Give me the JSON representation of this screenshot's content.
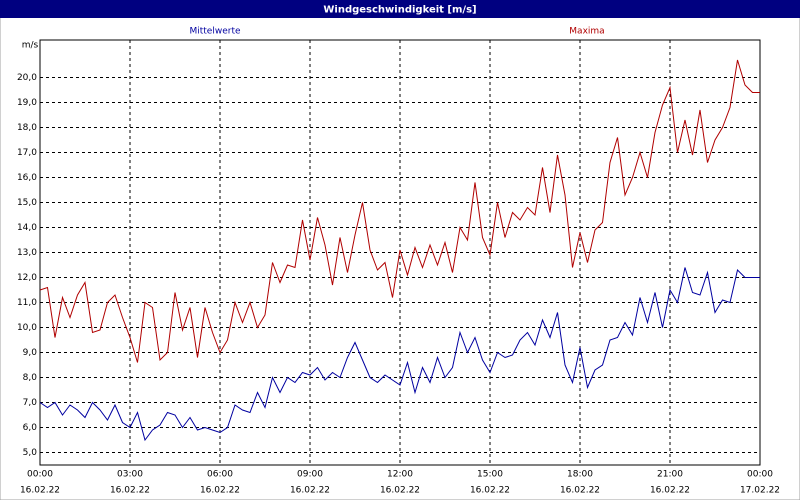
{
  "chart_data": {
    "type": "line",
    "title": "Windgeschwindigkeit [m/s]",
    "y_label": "m/s",
    "x": [
      0,
      0.25,
      0.5,
      0.75,
      1,
      1.25,
      1.5,
      1.75,
      2,
      2.25,
      2.5,
      2.75,
      3,
      3.25,
      3.5,
      3.75,
      4,
      4.25,
      4.5,
      4.75,
      5,
      5.25,
      5.5,
      5.75,
      6,
      6.25,
      6.5,
      6.75,
      7,
      7.25,
      7.5,
      7.75,
      8,
      8.25,
      8.5,
      8.75,
      9,
      9.25,
      9.5,
      9.75,
      10,
      10.25,
      10.5,
      10.75,
      11,
      11.25,
      11.5,
      11.75,
      12,
      12.25,
      12.5,
      12.75,
      13,
      13.25,
      13.5,
      13.75,
      14,
      14.25,
      14.5,
      14.75,
      15,
      15.25,
      15.5,
      15.75,
      16,
      16.25,
      16.5,
      16.75,
      17,
      17.25,
      17.5,
      17.75,
      18,
      18.25,
      18.5,
      18.75,
      19,
      19.25,
      19.5,
      19.75,
      20,
      20.25,
      20.5,
      20.75,
      21,
      21.25,
      21.5,
      21.75,
      22,
      22.25,
      22.5,
      22.75,
      23,
      23.25,
      23.5,
      23.75,
      24
    ],
    "series": [
      {
        "name": "Mittelwerte",
        "color": "#0000a0",
        "values": [
          7.0,
          6.8,
          7.0,
          6.5,
          6.9,
          6.7,
          6.4,
          7.0,
          6.7,
          6.3,
          6.9,
          6.2,
          6.0,
          6.6,
          5.5,
          5.9,
          6.1,
          6.6,
          6.5,
          6.0,
          6.4,
          5.9,
          6.0,
          5.9,
          5.8,
          6.0,
          6.9,
          6.7,
          6.6,
          7.4,
          6.8,
          8.0,
          7.4,
          8.0,
          7.8,
          8.2,
          8.1,
          8.4,
          7.9,
          8.2,
          8.0,
          8.8,
          9.4,
          8.7,
          8.0,
          7.8,
          8.1,
          7.9,
          7.7,
          8.6,
          7.4,
          8.4,
          7.8,
          8.8,
          8.0,
          8.4,
          9.8,
          9.0,
          9.6,
          8.7,
          8.2,
          9.0,
          8.8,
          8.9,
          9.5,
          9.8,
          9.3,
          10.3,
          9.6,
          10.6,
          8.5,
          7.8,
          9.2,
          7.6,
          8.3,
          8.5,
          9.5,
          9.6,
          10.2,
          9.7,
          11.2,
          10.2,
          11.4,
          10.0,
          11.5,
          11.0,
          12.4,
          11.4,
          11.3,
          12.2,
          10.6,
          11.1,
          11.0,
          12.3,
          12.0,
          12.0,
          12.0
        ]
      },
      {
        "name": "Maxima",
        "color": "#b00000",
        "values": [
          11.5,
          11.6,
          9.6,
          11.2,
          10.4,
          11.3,
          11.8,
          9.8,
          9.9,
          11.0,
          11.3,
          10.4,
          9.6,
          8.6,
          11.0,
          10.8,
          8.7,
          9.0,
          11.4,
          9.9,
          10.8,
          8.8,
          10.8,
          9.8,
          9.0,
          9.5,
          11.0,
          10.2,
          11.0,
          10.0,
          10.5,
          12.6,
          11.8,
          12.5,
          12.4,
          14.3,
          12.7,
          14.4,
          13.3,
          11.7,
          13.6,
          12.2,
          13.7,
          15.0,
          13.1,
          12.3,
          12.6,
          11.2,
          13.1,
          12.1,
          13.2,
          12.4,
          13.3,
          12.5,
          13.4,
          12.2,
          14.0,
          13.5,
          15.8,
          13.6,
          12.9,
          15.0,
          13.6,
          14.6,
          14.3,
          14.8,
          14.5,
          16.4,
          14.6,
          16.9,
          15.3,
          12.4,
          13.8,
          12.6,
          13.9,
          14.2,
          16.6,
          17.6,
          15.3,
          16.0,
          17.0,
          16.0,
          17.8,
          18.9,
          19.6,
          17.0,
          18.3,
          16.9,
          18.7,
          16.6,
          17.5,
          18.0,
          18.8,
          20.7,
          19.7,
          19.4,
          19.4
        ]
      }
    ],
    "xlim": [
      0,
      24
    ],
    "xticks": [
      {
        "value": 0,
        "label": "00:00",
        "date": "16.02.22"
      },
      {
        "value": 3,
        "label": "03:00",
        "date": "16.02.22"
      },
      {
        "value": 6,
        "label": "06:00",
        "date": "16.02.22"
      },
      {
        "value": 9,
        "label": "09:00",
        "date": "16.02.22"
      },
      {
        "value": 12,
        "label": "12:00",
        "date": "16.02.22"
      },
      {
        "value": 15,
        "label": "15:00",
        "date": "16.02.22"
      },
      {
        "value": 18,
        "label": "18:00",
        "date": "16.02.22"
      },
      {
        "value": 21,
        "label": "21:00",
        "date": "16.02.22"
      },
      {
        "value": 24,
        "label": "00:00",
        "date": "17.02.22"
      }
    ],
    "ylim": [
      4.5,
      21.5
    ],
    "yticks": [
      {
        "value": 5,
        "label": "5,0"
      },
      {
        "value": 6,
        "label": "6,0"
      },
      {
        "value": 7,
        "label": "7,0"
      },
      {
        "value": 8,
        "label": "8,0"
      },
      {
        "value": 9,
        "label": "9,0"
      },
      {
        "value": 10,
        "label": "10,0"
      },
      {
        "value": 11,
        "label": "11,0"
      },
      {
        "value": 12,
        "label": "12,0"
      },
      {
        "value": 13,
        "label": "13,0"
      },
      {
        "value": 14,
        "label": "14,0"
      },
      {
        "value": 15,
        "label": "15,0"
      },
      {
        "value": 16,
        "label": "16,0"
      },
      {
        "value": 17,
        "label": "17,0"
      },
      {
        "value": 18,
        "label": "18,0"
      },
      {
        "value": 19,
        "label": "19,0"
      },
      {
        "value": 20,
        "label": "20,0"
      }
    ],
    "grid": true
  }
}
